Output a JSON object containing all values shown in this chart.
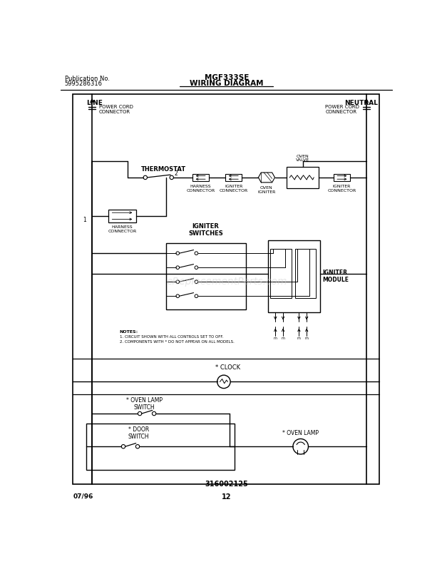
{
  "title": "MGF333SE",
  "subtitle": "WIRING DIAGRAM",
  "pub_no_label": "Publication No.",
  "pub_no": "5995286316",
  "part_no": "316002125",
  "date": "07/96",
  "page": "12",
  "bg_color": "#ffffff",
  "watermark": "eReplacementParts.com",
  "notes_line1": "NOTES:",
  "notes_line2": "1. CIRCUIT SHOWN WITH ALL CONTROLS SET TO OFF.",
  "notes_line3": "2. COMPONENTS WITH * DO NOT APPEAR ON ALL MODELS."
}
